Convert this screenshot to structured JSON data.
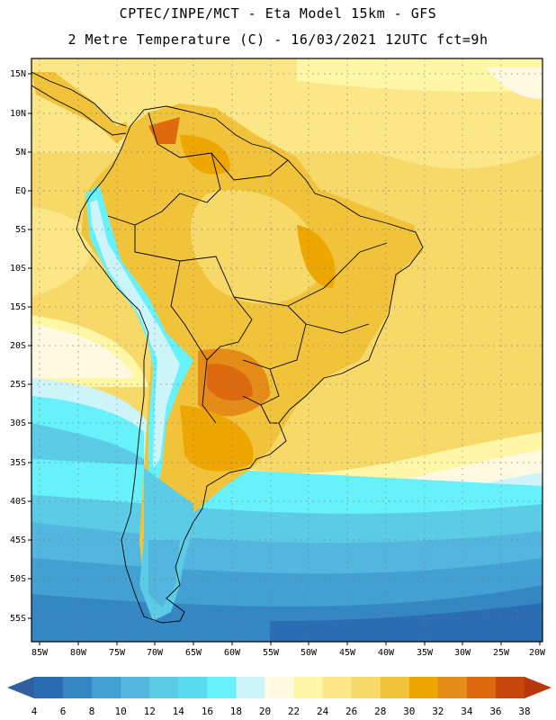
{
  "header": {
    "line1": "CPTEC/INPE/MCT -  Eta Model 15km - GFS",
    "line2": "2 Metre Temperature (C) - 16/03/2021 12UTC fct=9h"
  },
  "map": {
    "lat_labels": [
      "15N",
      "10N",
      "5N",
      "EQ",
      "5S",
      "10S",
      "15S",
      "20S",
      "25S",
      "30S",
      "35S",
      "40S",
      "45S",
      "50S",
      "55S"
    ],
    "lon_labels": [
      "85W",
      "80W",
      "75W",
      "70W",
      "65W",
      "60W",
      "55W",
      "50W",
      "45W",
      "40W",
      "35W",
      "30W",
      "25W",
      "20W"
    ]
  },
  "colorbar": {
    "values": [
      "4",
      "6",
      "8",
      "10",
      "12",
      "14",
      "16",
      "18",
      "20",
      "22",
      "24",
      "26",
      "28",
      "30",
      "32",
      "34",
      "36",
      "38"
    ],
    "colors": [
      "#2a6db3",
      "#3587c4",
      "#43a0d2",
      "#52b6de",
      "#5ccbe6",
      "#5adcef",
      "#66f1fb",
      "#cdf3fb",
      "#fff9e1",
      "#fff6a6",
      "#fbe787",
      "#f7d96a",
      "#f0c33b",
      "#eea600",
      "#e58b18",
      "#dd6a0f",
      "#c8450b"
    ],
    "low_color": "#2f5fa0",
    "high_color": "#b8360a"
  }
}
